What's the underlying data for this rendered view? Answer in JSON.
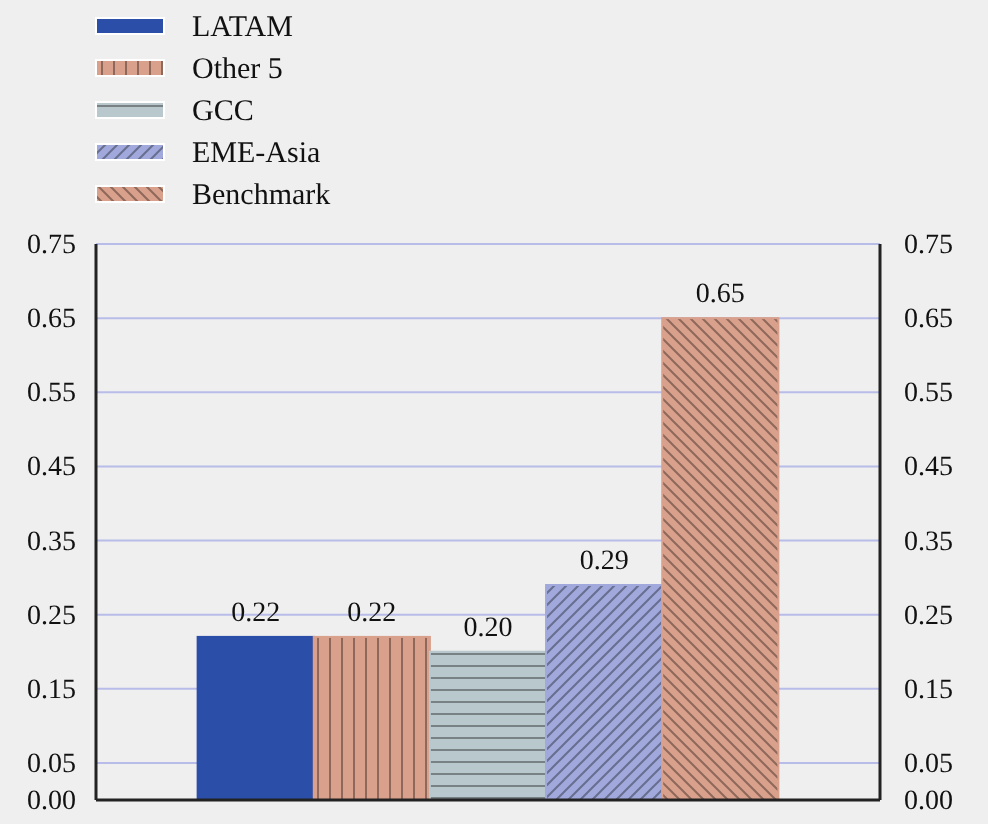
{
  "chart_data": {
    "type": "bar",
    "categories": [
      null
    ],
    "series": [
      {
        "name": "LATAM",
        "color": "#2b4ea8",
        "values": [
          0.22
        ],
        "value_labels": [
          "0.22"
        ]
      },
      {
        "name": "Other 5",
        "color": "#d9a08c",
        "values": [
          0.22
        ],
        "value_labels": [
          "0.22"
        ]
      },
      {
        "name": "GCC",
        "color": "#b8c8cc",
        "values": [
          0.2
        ],
        "value_labels": [
          "0.20"
        ]
      },
      {
        "name": "EME-Asia",
        "color": "#a0a8dc",
        "values": [
          0.29
        ],
        "value_labels": [
          "0.29"
        ]
      },
      {
        "name": "Benchmark",
        "color": "#d9a08c",
        "values": [
          0.65
        ],
        "value_labels": [
          "0.65"
        ]
      }
    ],
    "ylim": [
      0,
      0.75
    ],
    "yticks": [
      {
        "value": 0,
        "label": "0.00"
      },
      {
        "value": 0.05,
        "label": "0.05"
      },
      {
        "value": 0.15,
        "label": "0.15"
      },
      {
        "value": 0.25,
        "label": "0.25"
      },
      {
        "value": 0.35,
        "label": "0.35"
      },
      {
        "value": 0.45,
        "label": "0.45"
      },
      {
        "value": 0.55,
        "label": "0.55"
      },
      {
        "value": 0.65,
        "label": "0.65"
      },
      {
        "value": 0.75,
        "label": "0.75"
      }
    ],
    "y2lim": [
      0,
      0.75
    ],
    "y2ticks": [
      {
        "value": 0,
        "label": "0.00"
      },
      {
        "value": 0.05,
        "label": "0.05"
      },
      {
        "value": 0.15,
        "label": "0.15"
      },
      {
        "value": 0.25,
        "label": "0.25"
      },
      {
        "value": 0.35,
        "label": "0.35"
      },
      {
        "value": 0.45,
        "label": "0.45"
      },
      {
        "value": 0.55,
        "label": "0.55"
      },
      {
        "value": 0.65,
        "label": "0.65"
      },
      {
        "value": 0.75,
        "label": "0.75"
      }
    ],
    "grid": "y",
    "legend": "top left"
  }
}
